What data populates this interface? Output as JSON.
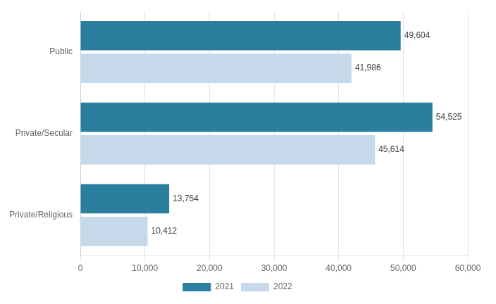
{
  "chart_data": {
    "type": "bar",
    "orientation": "horizontal",
    "categories": [
      "Public",
      "Private/Secular",
      "Private/Religious"
    ],
    "series": [
      {
        "name": "2021",
        "color": "#2a7f9e",
        "values": [
          49604,
          54525,
          13754
        ],
        "value_labels": [
          "49,604",
          "54,525",
          "13,754"
        ]
      },
      {
        "name": "2022",
        "color": "#c5d9ea",
        "values": [
          41986,
          45614,
          10412
        ],
        "value_labels": [
          "41,986",
          "45,614",
          "10,412"
        ]
      }
    ],
    "xlim": [
      0,
      60000
    ],
    "xticks": [
      0,
      {
        "value": 10000,
        "label": "10,000"
      },
      {
        "value": 20000,
        "label": "20,000"
      },
      {
        "value": 30000,
        "label": "30,000"
      },
      {
        "value": 40000,
        "label": "40,000"
      },
      {
        "value": 50000,
        "label": "50,000"
      },
      {
        "value": 60000,
        "label": "60,000"
      }
    ],
    "grid": true,
    "legend": "bottom",
    "data_labels": true
  }
}
